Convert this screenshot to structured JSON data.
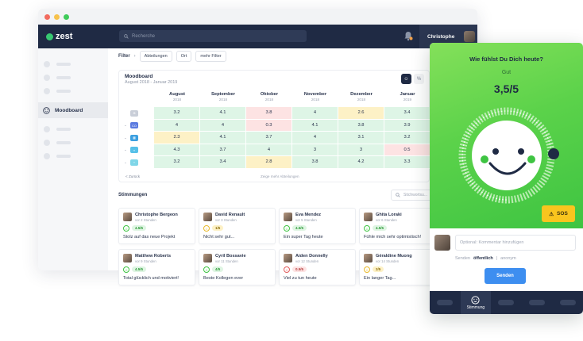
{
  "app": {
    "logo": "zest",
    "search_placeholder": "Recherche",
    "user_name": "Christophe"
  },
  "sidebar": {
    "active_label": "Moodboard"
  },
  "filter": {
    "label": "Filter",
    "chips": [
      "Abteilungen",
      "Ort",
      "mehr Filter"
    ]
  },
  "moodboard": {
    "title": "Moodboard",
    "range": "August 2018 - Januar 2019",
    "months": [
      {
        "name": "August",
        "year": "2018"
      },
      {
        "name": "September",
        "year": "2018"
      },
      {
        "name": "Oktober",
        "year": "2018"
      },
      {
        "name": "November",
        "year": "2018"
      },
      {
        "name": "Dezember",
        "year": "2018"
      },
      {
        "name": "Januar",
        "year": "2019"
      }
    ],
    "rows": [
      {
        "values": [
          "3.2",
          "4.1",
          "3.8",
          "4",
          "2.6",
          "3.4"
        ],
        "colors": [
          "g",
          "g",
          "r",
          "g",
          "y",
          "g"
        ]
      },
      {
        "values": [
          "4",
          "4",
          "0.3",
          "4.1",
          "3.8",
          "3.9"
        ],
        "colors": [
          "g",
          "g",
          "r",
          "g",
          "g",
          "g"
        ]
      },
      {
        "values": [
          "2.3",
          "4.1",
          "3.7",
          "4",
          "3.1",
          "3.2"
        ],
        "colors": [
          "y",
          "g",
          "g",
          "g",
          "g",
          "g"
        ]
      },
      {
        "values": [
          "4.3",
          "3.7",
          "4",
          "3",
          "3",
          "0.5"
        ],
        "colors": [
          "g",
          "g",
          "g",
          "g",
          "g",
          "r"
        ]
      },
      {
        "values": [
          "3.2",
          "3.4",
          "2.8",
          "3.8",
          "4.2",
          "3.3"
        ],
        "colors": [
          "g",
          "g",
          "y",
          "g",
          "g",
          "g"
        ]
      }
    ],
    "back": "< Zurück",
    "more": "Zeige mehr Abteilungen"
  },
  "stimmungen": {
    "title": "Stimmungen",
    "search_placeholder": "Stichwortsu...",
    "cards": [
      {
        "name": "Christophe Bergeon",
        "time": "vor 2 Stunden",
        "score": "4.5/5",
        "level": "good",
        "msg": "Stolz auf das neue Projekt"
      },
      {
        "name": "David Renault",
        "time": "vor 3 Stunden",
        "score": "1/5",
        "level": "mid",
        "msg": "Nicht sehr gut..."
      },
      {
        "name": "Eva Mendez",
        "time": "vor 5 Stunden",
        "score": "4.5/5",
        "level": "good",
        "msg": "Ein super Tag heute"
      },
      {
        "name": "Ghita Loraki",
        "time": "vor 6 Stunden",
        "score": "4.5/5",
        "level": "good",
        "msg": "Fühle mich sehr optimistisch!"
      },
      {
        "name": "Matthew Roberts",
        "time": "vor 9 Stunden",
        "score": "4.5/5",
        "level": "good",
        "msg": "Total glücklich und motiviert!"
      },
      {
        "name": "Cyril Bossavie",
        "time": "vor 11 Stunden",
        "score": "4/5",
        "level": "good",
        "msg": "Beste Kollegen ever"
      },
      {
        "name": "Aiden Donnelly",
        "time": "vor 12 Stunden",
        "score": "0.5/5",
        "level": "bad",
        "msg": "Viel zu tun heute"
      },
      {
        "name": "Géraldine Muong",
        "time": "vor 14 Stunden",
        "score": "2/5",
        "level": "mid",
        "msg": "Ein langer Tag..."
      }
    ]
  },
  "mood_panel": {
    "question": "Wie fühlst Du Dich heute?",
    "mood_word": "Gut",
    "value": "3,5/5",
    "sos": "SOS",
    "comment_placeholder": "Optional: Kommentar hinzufügen",
    "send_label": "Senden",
    "visibility_public": "öffentlich",
    "visibility_anon": "anonym",
    "send_button": "Senden",
    "nav_active": "Stimmung"
  },
  "colors": {
    "green": "#3ec442",
    "navy": "#1f2a44",
    "yellow": "#f9c51e",
    "blue": "#3d8ef0"
  }
}
